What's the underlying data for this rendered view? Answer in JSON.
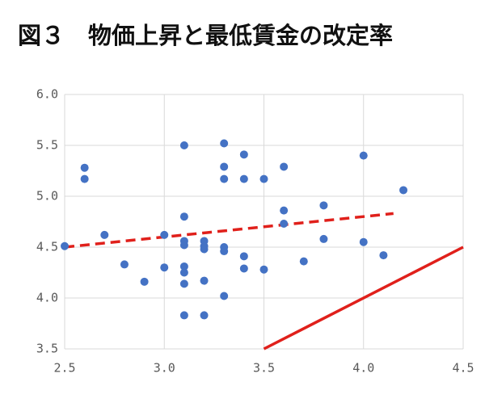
{
  "chart_data": {
    "type": "scatter",
    "title": "図３　物価上昇と最低賃金の改定率",
    "xlim": [
      2.5,
      4.5
    ],
    "xticks": [
      2.5,
      {
        "value": 3,
        "label": "3.0"
      },
      3.5,
      {
        "value": 4,
        "label": "4.0"
      },
      4.5
    ],
    "ylim": [
      3.5,
      6
    ],
    "yticks": [
      3.5,
      {
        "value": 4,
        "label": "4.0"
      },
      4.5,
      {
        "value": 5,
        "label": "5.0"
      },
      5.5,
      {
        "value": 6,
        "label": "6.0"
      }
    ],
    "grid": true,
    "color": "#4472c4",
    "x": [
      2.5,
      2.6,
      2.6,
      2.7,
      2.8,
      2.9,
      3.0,
      3.0,
      3.1,
      3.1,
      3.1,
      3.1,
      3.1,
      3.1,
      3.1,
      3.1,
      3.2,
      3.2,
      3.2,
      3.2,
      3.2,
      3.3,
      3.3,
      3.3,
      3.3,
      3.3,
      3.3,
      3.4,
      3.4,
      3.4,
      3.4,
      3.5,
      3.5,
      3.6,
      3.6,
      3.6,
      3.7,
      3.8,
      3.8,
      4.0,
      4.0,
      4.1,
      4.2
    ],
    "values": [
      4.51,
      5.28,
      5.17,
      4.62,
      4.33,
      4.16,
      4.62,
      4.3,
      5.5,
      4.8,
      4.56,
      4.52,
      4.31,
      4.25,
      4.14,
      3.83,
      4.56,
      4.51,
      4.48,
      4.17,
      3.83,
      5.52,
      5.29,
      5.17,
      4.5,
      4.46,
      4.02,
      5.41,
      5.17,
      4.41,
      4.29,
      5.17,
      4.28,
      5.29,
      4.86,
      4.73,
      4.36,
      4.91,
      4.58,
      5.4,
      4.55,
      4.42,
      5.06
    ],
    "lines": [
      {
        "type": "line",
        "color": "#e0201b",
        "dashed": true,
        "x": [
          2.5,
          4.15
        ],
        "values": [
          4.5,
          4.83
        ]
      },
      {
        "type": "line",
        "color": "#e0201b",
        "dashed": false,
        "x": [
          3.5,
          4.5
        ],
        "values": [
          3.5,
          4.5
        ]
      }
    ]
  }
}
